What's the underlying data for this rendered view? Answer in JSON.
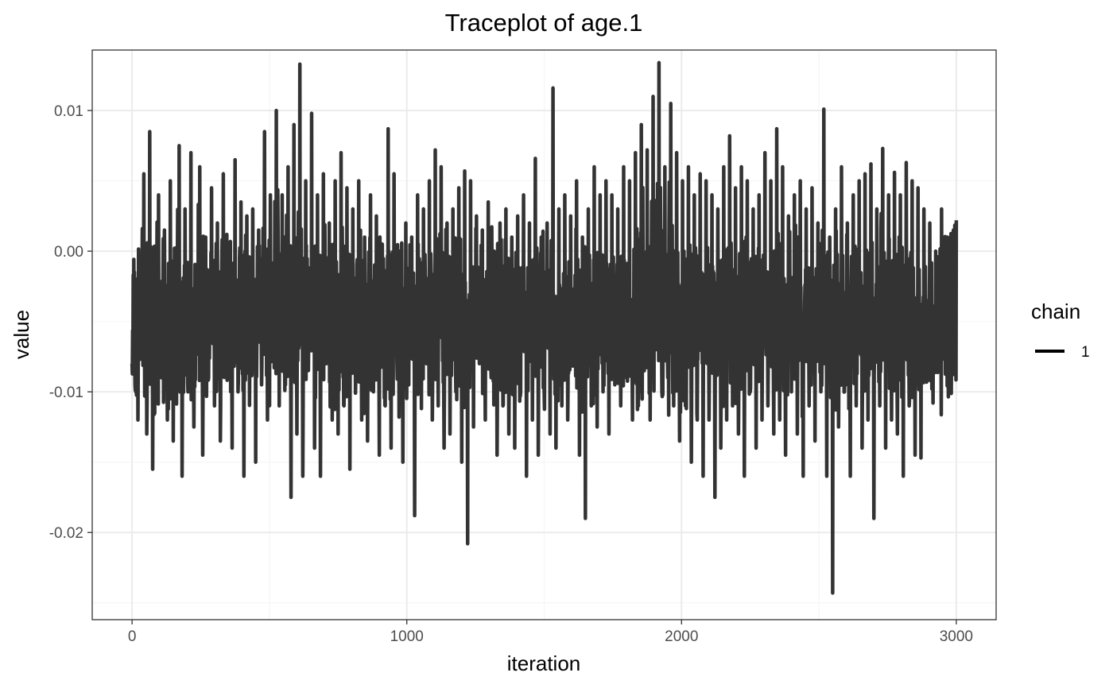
{
  "chart_data": {
    "type": "line",
    "title": "Traceplot of  age.1",
    "xlabel": "iteration",
    "ylabel": "value",
    "xlim": [
      -145,
      3145
    ],
    "ylim": [
      -0.0262,
      0.0143
    ],
    "x_ticks": [
      0,
      1000,
      2000,
      3000
    ],
    "x_tick_labels": [
      "0",
      "1000",
      "2000",
      "3000"
    ],
    "y_ticks": [
      0.01,
      0.0,
      -0.01,
      -0.02
    ],
    "y_tick_labels": [
      "0.01",
      "0.00",
      "-0.01",
      "-0.02"
    ],
    "grid": true,
    "legend": {
      "title": "chain",
      "position": "right",
      "entries": [
        "1"
      ]
    },
    "colors": {
      "line": "#333333",
      "panel_border": "#333333",
      "grid_major": "#ebebeb",
      "grid_minor": "#f4f4f4"
    },
    "series": [
      {
        "name": "1",
        "x_start": 0,
        "x_end": 3000,
        "iterations": 3001,
        "values_sampled_every_10": [
          -0.008,
          -0.0095,
          -0.012,
          -0.0035,
          0.0055,
          -0.013,
          0.0085,
          -0.0155,
          -0.001,
          0.004,
          -0.009,
          0.0015,
          -0.012,
          0.005,
          -0.0135,
          -0.004,
          0.0075,
          -0.016,
          0.003,
          -0.01,
          0.007,
          -0.0125,
          -0.0025,
          0.006,
          -0.0145,
          0.001,
          -0.009,
          0.0045,
          -0.011,
          0.002,
          -0.0135,
          0.0055,
          -0.006,
          0.0,
          -0.014,
          0.0065,
          -0.01,
          0.0035,
          -0.016,
          0.0025,
          -0.007,
          0.003,
          -0.015,
          0.0015,
          -0.0095,
          0.0085,
          -0.012,
          0.004,
          -0.005,
          0.01,
          -0.011,
          0.004,
          -0.002,
          0.006,
          -0.0175,
          0.009,
          -0.013,
          0.0133,
          -0.016,
          0.005,
          -0.006,
          0.0098,
          -0.014,
          0.004,
          -0.016,
          0.0055,
          -0.008,
          0.002,
          -0.012,
          0.005,
          -0.013,
          0.007,
          -0.011,
          0.0045,
          -0.0155,
          0.003,
          -0.009,
          0.005,
          -0.012,
          0.001,
          -0.0135,
          0.004,
          -0.01,
          0.0025,
          -0.0145,
          0.0005,
          -0.011,
          0.0087,
          -0.014,
          0.0055,
          -0.008,
          0.0,
          -0.015,
          0.002,
          -0.0095,
          0.001,
          -0.0188,
          0.004,
          -0.01,
          0.003,
          -0.008,
          0.005,
          -0.012,
          0.0072,
          -0.011,
          0.006,
          -0.014,
          0.002,
          -0.013,
          0.003,
          -0.01,
          0.0045,
          -0.015,
          0.0057,
          -0.0208,
          0.005,
          -0.0125,
          0.0025,
          -0.008,
          0.0015,
          -0.012,
          0.0035,
          -0.009,
          0.0,
          -0.0145,
          0.002,
          -0.011,
          0.003,
          -0.013,
          0.001,
          -0.014,
          0.0025,
          -0.01,
          0.004,
          -0.016,
          0.002,
          -0.012,
          0.0066,
          -0.0145,
          0.001,
          -0.01,
          0.002,
          -0.013,
          0.0116,
          -0.014,
          0.003,
          -0.011,
          0.004,
          -0.012,
          0.0025,
          -0.008,
          0.005,
          -0.0145,
          0.001,
          -0.019,
          0.003,
          -0.011,
          0.006,
          -0.0125,
          0.004,
          -0.01,
          0.005,
          -0.013,
          0.004,
          -0.0095,
          0.003,
          -0.011,
          0.006,
          -0.009,
          0.005,
          -0.012,
          0.007,
          -0.011,
          0.009,
          -0.0085,
          0.0072,
          -0.012,
          0.011,
          -0.007,
          0.0134,
          -0.01,
          0.006,
          -0.009,
          0.0105,
          -0.011,
          0.007,
          -0.0135,
          0.005,
          -0.011,
          0.006,
          -0.015,
          0.004,
          -0.012,
          0.0055,
          -0.016,
          0.005,
          -0.012,
          0.004,
          -0.0175,
          0.003,
          -0.014,
          0.006,
          -0.012,
          0.0082,
          -0.011,
          0.0045,
          -0.013,
          0.006,
          -0.016,
          0.005,
          -0.01,
          0.003,
          -0.014,
          0.004,
          -0.012,
          0.007,
          -0.011,
          0.005,
          -0.013,
          0.0087,
          -0.012,
          0.006,
          -0.0145,
          0.0025,
          -0.01,
          0.004,
          -0.013,
          0.005,
          -0.016,
          0.003,
          -0.011,
          0.0045,
          -0.0135,
          0.002,
          -0.01,
          0.0101,
          -0.016,
          0.001,
          -0.0243,
          0.003,
          -0.0125,
          0.006,
          -0.01,
          0.002,
          -0.016,
          0.004,
          -0.011,
          0.005,
          -0.014,
          0.0055,
          -0.012,
          0.0062,
          -0.019,
          0.003,
          -0.011,
          0.0073,
          -0.014,
          0.004,
          -0.012,
          0.0056,
          -0.013,
          0.004,
          -0.016,
          0.0063,
          -0.011,
          0.005,
          -0.0145,
          0.0045,
          -0.0147,
          0.003,
          -0.008,
          0.002,
          -0.006,
          0.0,
          -0.004,
          0.003,
          -0.007,
          0.001,
          -0.005,
          0.0015,
          0.0022
        ]
      }
    ]
  }
}
